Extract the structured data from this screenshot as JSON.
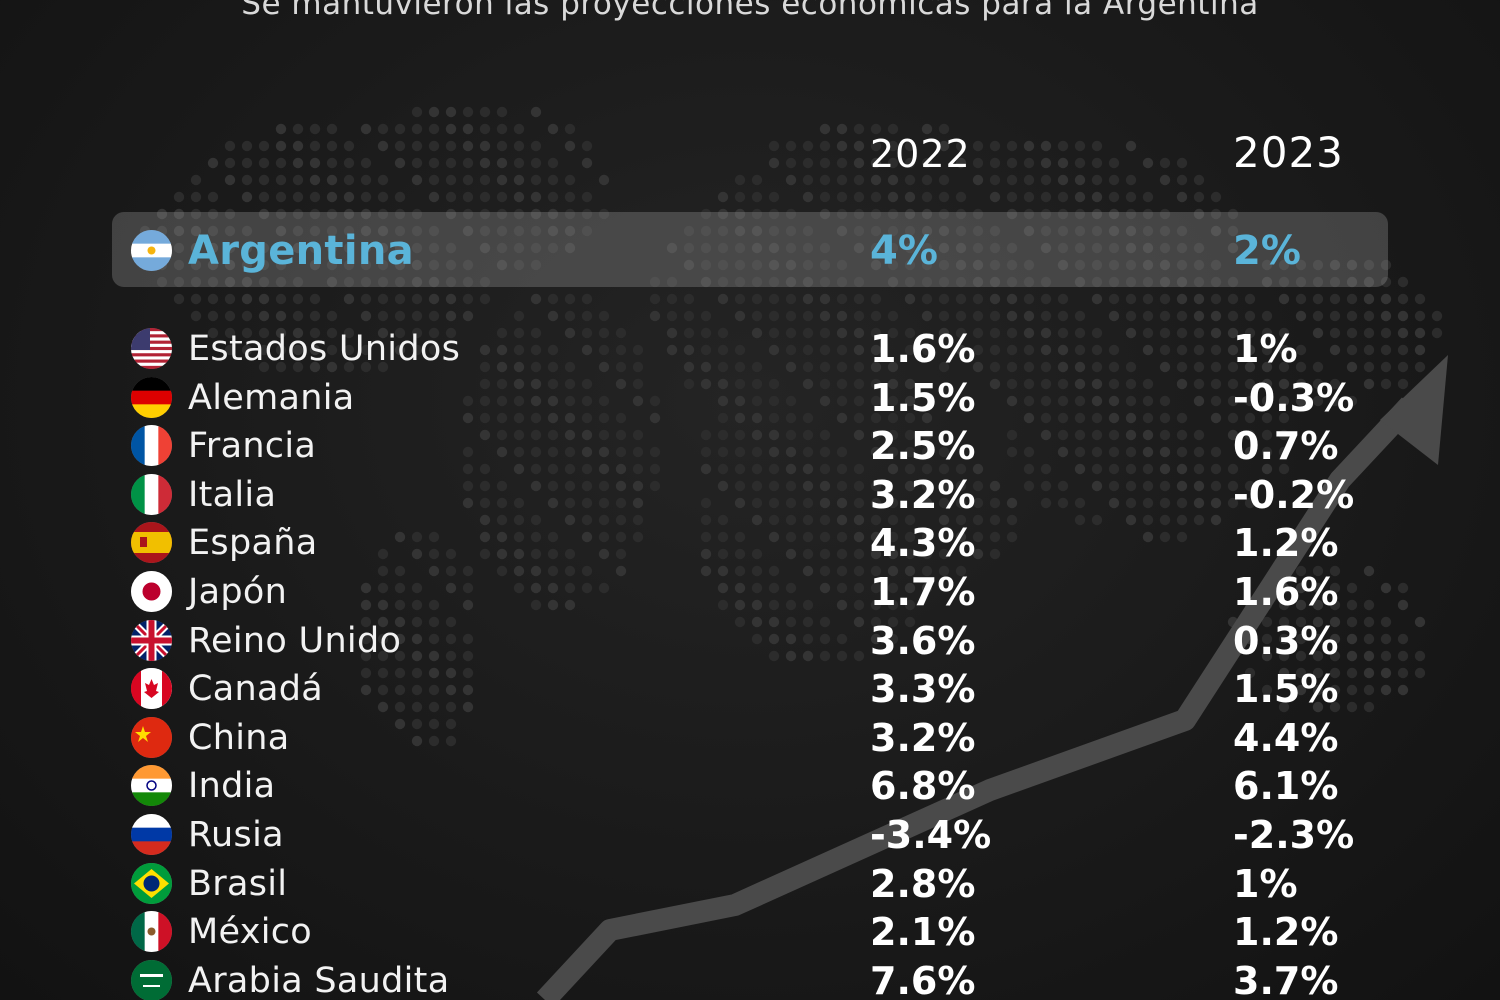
{
  "subtitle": "Se mantuvieron las proyecciones económicas para la Argentina",
  "headers": {
    "year1": "2022",
    "year2": "2023"
  },
  "highlight": {
    "country": "Argentina",
    "flag": "argentina-flag-icon",
    "v2022": "4%",
    "v2023": "2%"
  },
  "rows": [
    {
      "country": "Estados Unidos",
      "flag": "usa-flag-icon",
      "v2022": "1.6%",
      "v2023": "1%"
    },
    {
      "country": "Alemania",
      "flag": "germany-flag-icon",
      "v2022": "1.5%",
      "v2023": "-0.3%"
    },
    {
      "country": "Francia",
      "flag": "france-flag-icon",
      "v2022": "2.5%",
      "v2023": "0.7%"
    },
    {
      "country": "Italia",
      "flag": "italy-flag-icon",
      "v2022": "3.2%",
      "v2023": "-0.2%"
    },
    {
      "country": "España",
      "flag": "spain-flag-icon",
      "v2022": "4.3%",
      "v2023": "1.2%"
    },
    {
      "country": "Japón",
      "flag": "japan-flag-icon",
      "v2022": "1.7%",
      "v2023": "1.6%"
    },
    {
      "country": "Reino Unido",
      "flag": "uk-flag-icon",
      "v2022": "3.6%",
      "v2023": "0.3%"
    },
    {
      "country": "Canadá",
      "flag": "canada-flag-icon",
      "v2022": "3.3%",
      "v2023": "1.5%"
    },
    {
      "country": "China",
      "flag": "china-flag-icon",
      "v2022": "3.2%",
      "v2023": "4.4%"
    },
    {
      "country": "India",
      "flag": "india-flag-icon",
      "v2022": "6.8%",
      "v2023": "6.1%"
    },
    {
      "country": "Rusia",
      "flag": "russia-flag-icon",
      "v2022": "-3.4%",
      "v2023": "-2.3%"
    },
    {
      "country": "Brasil",
      "flag": "brazil-flag-icon",
      "v2022": "2.8%",
      "v2023": "1%"
    },
    {
      "country": "México",
      "flag": "mexico-flag-icon",
      "v2022": "2.1%",
      "v2023": "1.2%"
    },
    {
      "country": "Arabia Saudita",
      "flag": "saudi-arabia-flag-icon",
      "v2022": "7.6%",
      "v2023": "3.7%"
    }
  ],
  "chart_data": {
    "type": "table",
    "title": "",
    "columns": [
      "2022",
      "2023"
    ],
    "series": [
      {
        "name": "2022",
        "values": [
          4,
          1.6,
          1.5,
          2.5,
          3.2,
          4.3,
          1.7,
          3.6,
          3.3,
          3.2,
          6.8,
          -3.4,
          2.8,
          2.1,
          7.6
        ]
      },
      {
        "name": "2023",
        "values": [
          2,
          1,
          -0.3,
          0.7,
          -0.2,
          1.2,
          1.6,
          0.3,
          1.5,
          4.4,
          6.1,
          -2.3,
          1,
          1.2,
          3.7
        ]
      }
    ],
    "categories": [
      "Argentina",
      "Estados Unidos",
      "Alemania",
      "Francia",
      "Italia",
      "España",
      "Japón",
      "Reino Unido",
      "Canadá",
      "China",
      "India",
      "Rusia",
      "Brasil",
      "México",
      "Arabia Saudita"
    ],
    "unit": "%"
  },
  "colors": {
    "highlight_text": "#5ab4d9",
    "background": "#1a1a1a",
    "row_highlight": "#6f6f6f"
  }
}
